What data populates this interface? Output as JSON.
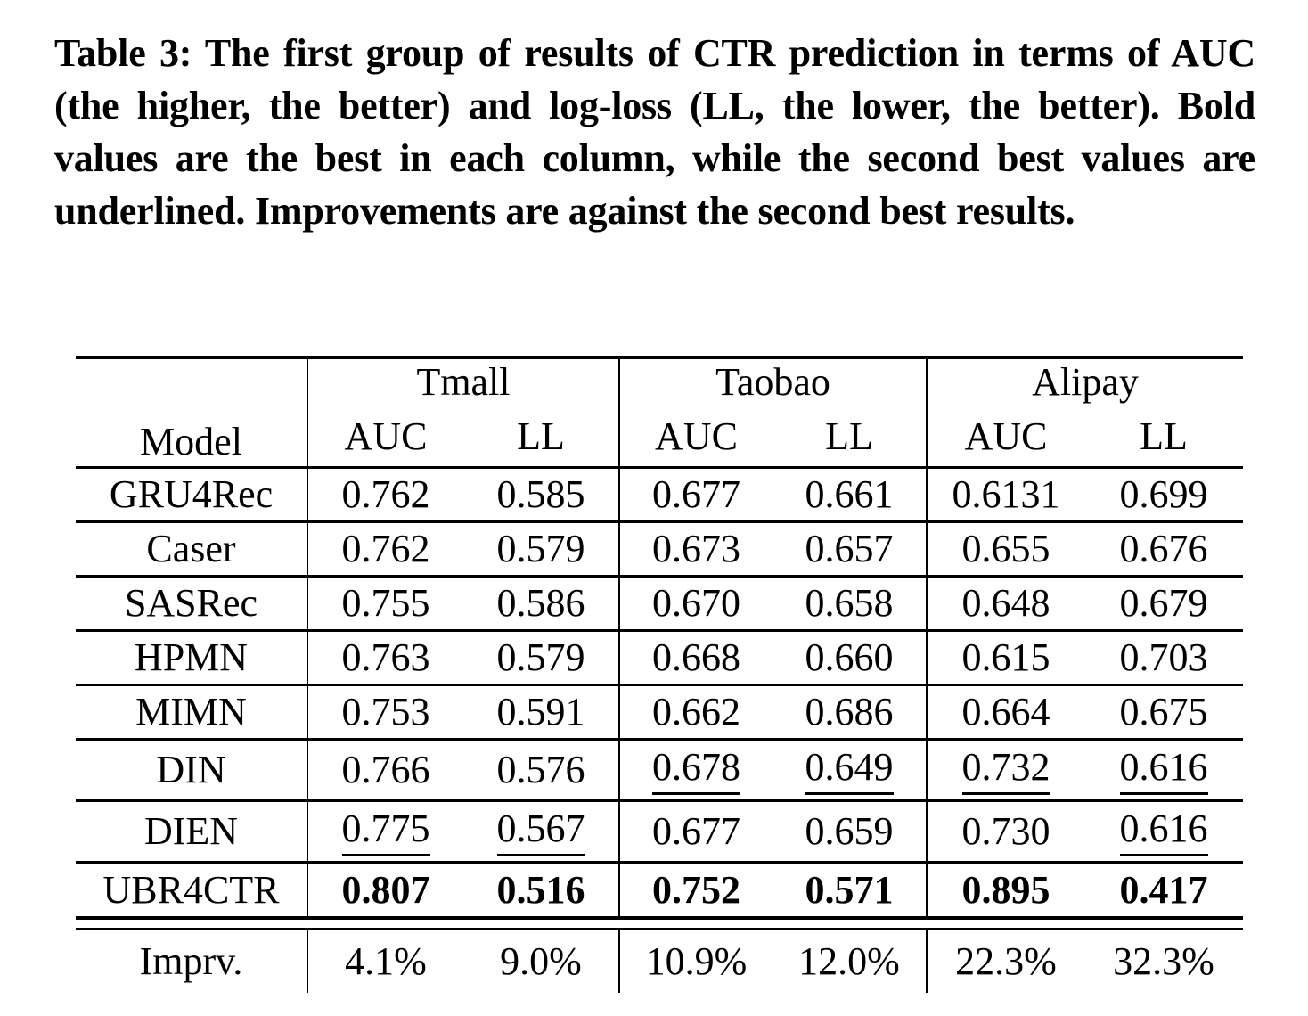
{
  "colors": {
    "text": "#000000",
    "background": "#ffffff",
    "rule": "#000000"
  },
  "caption": {
    "text": "Table 3: The first group of results of CTR prediction in terms of AUC (the higher, the better) and log-loss (LL, the lower, the better). Bold values are the best in each column, while the second best values are underlined. Improvements are against the second best results."
  },
  "table": {
    "corner_header": "Model",
    "group_headers": [
      "Tmall",
      "Taobao",
      "Alipay"
    ],
    "metric_headers": [
      "AUC",
      "LL",
      "AUC",
      "LL",
      "AUC",
      "LL"
    ],
    "rows": [
      {
        "model": "GRU4Rec",
        "values": [
          {
            "text": "0.762",
            "style": "normal"
          },
          {
            "text": "0.585",
            "style": "normal"
          },
          {
            "text": "0.677",
            "style": "normal"
          },
          {
            "text": "0.661",
            "style": "normal"
          },
          {
            "text": "0.6131",
            "style": "normal"
          },
          {
            "text": "0.699",
            "style": "normal"
          }
        ]
      },
      {
        "model": "Caser",
        "values": [
          {
            "text": "0.762",
            "style": "normal"
          },
          {
            "text": "0.579",
            "style": "normal"
          },
          {
            "text": "0.673",
            "style": "normal"
          },
          {
            "text": "0.657",
            "style": "normal"
          },
          {
            "text": "0.655",
            "style": "normal"
          },
          {
            "text": "0.676",
            "style": "normal"
          }
        ]
      },
      {
        "model": "SASRec",
        "values": [
          {
            "text": "0.755",
            "style": "normal"
          },
          {
            "text": "0.586",
            "style": "normal"
          },
          {
            "text": "0.670",
            "style": "normal"
          },
          {
            "text": "0.658",
            "style": "normal"
          },
          {
            "text": "0.648",
            "style": "normal"
          },
          {
            "text": "0.679",
            "style": "normal"
          }
        ]
      },
      {
        "model": "HPMN",
        "values": [
          {
            "text": "0.763",
            "style": "normal"
          },
          {
            "text": "0.579",
            "style": "normal"
          },
          {
            "text": "0.668",
            "style": "normal"
          },
          {
            "text": "0.660",
            "style": "normal"
          },
          {
            "text": "0.615",
            "style": "normal"
          },
          {
            "text": "0.703",
            "style": "normal"
          }
        ]
      },
      {
        "model": "MIMN",
        "values": [
          {
            "text": "0.753",
            "style": "normal"
          },
          {
            "text": "0.591",
            "style": "normal"
          },
          {
            "text": "0.662",
            "style": "normal"
          },
          {
            "text": "0.686",
            "style": "normal"
          },
          {
            "text": "0.664",
            "style": "normal"
          },
          {
            "text": "0.675",
            "style": "normal"
          }
        ]
      },
      {
        "model": "DIN",
        "values": [
          {
            "text": "0.766",
            "style": "normal"
          },
          {
            "text": "0.576",
            "style": "normal"
          },
          {
            "text": "0.678",
            "style": "underline"
          },
          {
            "text": "0.649",
            "style": "underline"
          },
          {
            "text": "0.732",
            "style": "underline"
          },
          {
            "text": "0.616",
            "style": "underline"
          }
        ]
      },
      {
        "model": "DIEN",
        "values": [
          {
            "text": "0.775",
            "style": "underline"
          },
          {
            "text": "0.567",
            "style": "underline"
          },
          {
            "text": "0.677",
            "style": "normal"
          },
          {
            "text": "0.659",
            "style": "normal"
          },
          {
            "text": "0.730",
            "style": "normal"
          },
          {
            "text": "0.616",
            "style": "underline"
          }
        ]
      },
      {
        "model": "UBR4CTR",
        "values": [
          {
            "text": "0.807",
            "style": "bold"
          },
          {
            "text": "0.516",
            "style": "bold"
          },
          {
            "text": "0.752",
            "style": "bold"
          },
          {
            "text": "0.571",
            "style": "bold"
          },
          {
            "text": "0.895",
            "style": "bold"
          },
          {
            "text": "0.417",
            "style": "bold"
          }
        ]
      },
      {
        "model": "Imprv.",
        "values": [
          {
            "text": "4.1%",
            "style": "normal"
          },
          {
            "text": "9.0%",
            "style": "normal"
          },
          {
            "text": "10.9%",
            "style": "normal"
          },
          {
            "text": "12.0%",
            "style": "normal"
          },
          {
            "text": "22.3%",
            "style": "normal"
          },
          {
            "text": "32.3%",
            "style": "normal"
          }
        ]
      }
    ]
  }
}
